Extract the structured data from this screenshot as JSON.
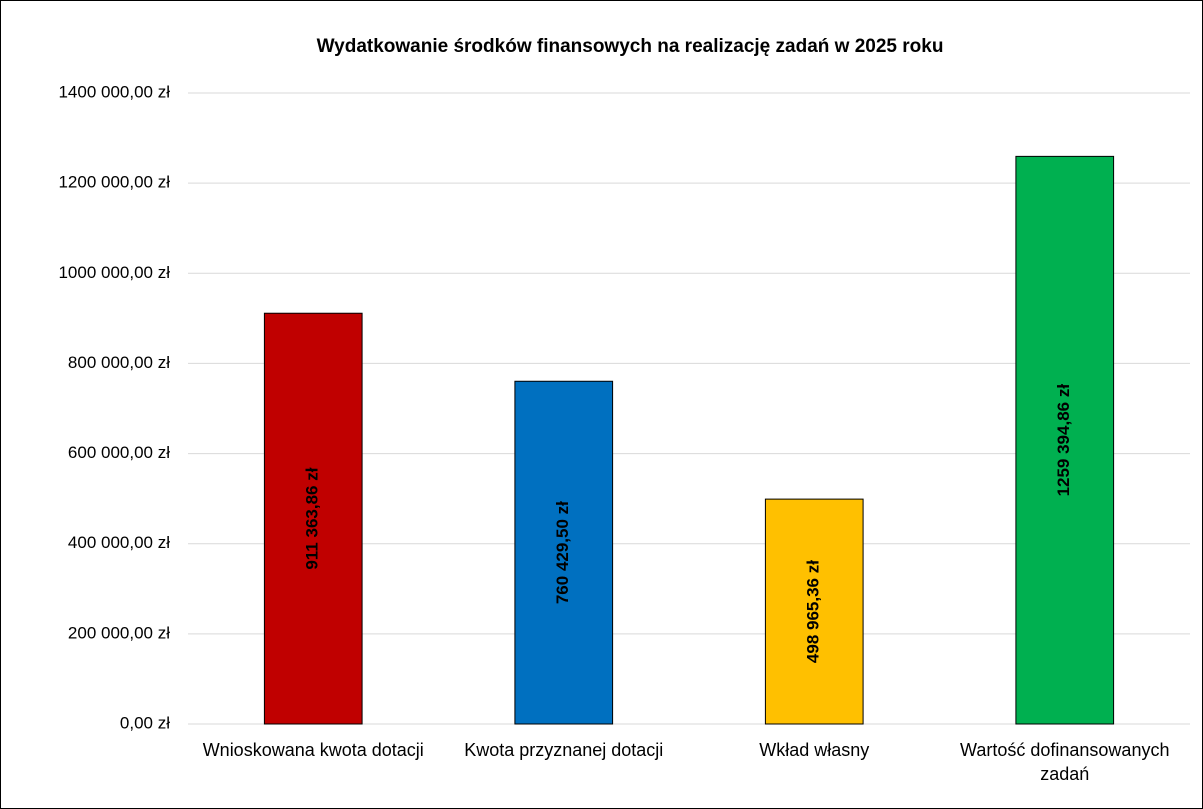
{
  "chart_data": {
    "type": "bar",
    "title": "Wydatkowanie środków finansowych na realizację zadań w 2025 roku",
    "categories": [
      "Wnioskowana kwota dotacji",
      "Kwota przyznanej dotacji",
      "Wkład własny",
      "Wartość dofinansowanych zadań"
    ],
    "values": [
      911363.86,
      760429.5,
      498965.36,
      1259394.86
    ],
    "value_labels": [
      "911 363,86 zł",
      "760 429,50 zł",
      "498 965,36 zł",
      "1259 394,86 zł"
    ],
    "colors": [
      "#c00000",
      "#0070c0",
      "#ffc000",
      "#00b050"
    ],
    "ylim": [
      0,
      1400000
    ],
    "yticks": [
      {
        "value": 0,
        "label": "0,00 zł"
      },
      {
        "value": 200000,
        "label": "200 000,00 zł"
      },
      {
        "value": 400000,
        "label": "400 000,00 zł"
      },
      {
        "value": 600000,
        "label": "600 000,00 zł"
      },
      {
        "value": 800000,
        "label": "800 000,00 zł"
      },
      {
        "value": 1000000,
        "label": "1000 000,00 zł"
      },
      {
        "value": 1200000,
        "label": "1200 000,00 zł"
      },
      {
        "value": 1400000,
        "label": "1400 000,00 zł"
      }
    ],
    "grid": true
  }
}
